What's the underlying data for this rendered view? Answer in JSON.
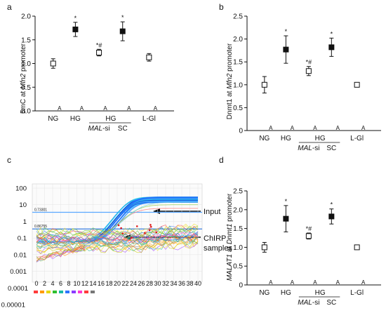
{
  "chart_data": [
    {
      "panel": "a",
      "type": "scatter",
      "ylabel_pre": "5mC at ",
      "ylabel_gene": "Mfn2",
      "ylabel_post": " promoter",
      "ylim": [
        0,
        2.0
      ],
      "yticks": [
        "0.0",
        "0.5",
        "1.0",
        "1.5",
        "2.0"
      ],
      "groups": [
        {
          "label": "NG",
          "value": 1.0,
          "err": 0.1,
          "filled": false,
          "star": ""
        },
        {
          "label": "HG",
          "value": 1.72,
          "err": 0.15,
          "filled": true,
          "star": "*"
        },
        {
          "label": "",
          "value": 1.23,
          "err": 0.07,
          "filled": false,
          "star": "*#"
        },
        {
          "label": "",
          "value": 1.68,
          "err": 0.2,
          "filled": true,
          "star": "*"
        },
        {
          "label": "L-Gl",
          "value": 1.13,
          "err": 0.08,
          "filled": false,
          "star": ""
        }
      ],
      "sub": {
        "hg": "HG",
        "mal": "MAL",
        "si": "-si",
        "sc": "SC"
      }
    },
    {
      "panel": "b",
      "type": "scatter",
      "ylabel_pre": "Dnmt1 at ",
      "ylabel_gene": "Mfn2",
      "ylabel_post": " promoter",
      "ylim": [
        0,
        2.5
      ],
      "yticks": [
        "0",
        "0.5",
        "1.0",
        "1.5",
        "2.0",
        "2.5"
      ],
      "groups": [
        {
          "label": "NG",
          "value": 1.0,
          "err": 0.18,
          "filled": false,
          "star": ""
        },
        {
          "label": "HG",
          "value": 1.77,
          "err": 0.3,
          "filled": true,
          "star": "*"
        },
        {
          "label": "",
          "value": 1.3,
          "err": 0.1,
          "filled": false,
          "star": "*#"
        },
        {
          "label": "",
          "value": 1.82,
          "err": 0.2,
          "filled": true,
          "star": "*"
        },
        {
          "label": "L-Gl",
          "value": 1.0,
          "err": 0.05,
          "filled": false,
          "star": ""
        }
      ],
      "sub": {
        "hg": "HG",
        "mal": "MAL",
        "si": "-si",
        "sc": "SC"
      }
    },
    {
      "panel": "c",
      "type": "line",
      "ytick_labels": [
        "100",
        "10",
        "1",
        "0.1",
        "0.01",
        "0.001",
        "0.0001",
        "0.00001"
      ],
      "ytick_values": [
        100,
        10,
        1,
        0.1,
        0.01,
        0.001,
        0.0001,
        1e-05
      ],
      "xticks": [
        0,
        2,
        4,
        6,
        8,
        10,
        12,
        14,
        16,
        18,
        20,
        22,
        24,
        26,
        28,
        30,
        32,
        34,
        36,
        38,
        40
      ],
      "xlim": [
        0,
        40
      ],
      "thresholds": [
        {
          "label": "0.73301",
          "value": 3.5
        },
        {
          "label": "0.86755",
          "value": 0.35
        }
      ],
      "annotations": [
        "Input",
        "ChIRP",
        "samples"
      ],
      "input_curves": [
        {
          "x": [
            0,
            19,
            21,
            23,
            25,
            27,
            29,
            32,
            36,
            40
          ],
          "y": [
            0.05,
            0.08,
            0.35,
            1.8,
            7,
            15,
            20,
            24,
            26,
            27
          ]
        }
      ]
    },
    {
      "panel": "d",
      "type": "scatter",
      "ylabel_gene": "MALAT1",
      "ylabel_mid": " at ",
      "ylabel_gene2": "Dnmt1",
      "ylabel_post": " promoter",
      "ylim": [
        0,
        2.5
      ],
      "yticks": [
        "0",
        "0.5",
        "1.0",
        "1.5",
        "2.0",
        "2.5"
      ],
      "groups": [
        {
          "label": "NG",
          "value": 1.0,
          "err": 0.13,
          "filled": false,
          "star": ""
        },
        {
          "label": "HG",
          "value": 1.76,
          "err": 0.35,
          "filled": true,
          "star": "*"
        },
        {
          "label": "",
          "value": 1.3,
          "err": 0.08,
          "filled": false,
          "star": "*#"
        },
        {
          "label": "",
          "value": 1.82,
          "err": 0.2,
          "filled": true,
          "star": "*"
        },
        {
          "label": "L-Gl",
          "value": 1.0,
          "err": 0.04,
          "filled": false,
          "star": ""
        }
      ],
      "sub": {
        "hg": "HG",
        "mal": "MAL",
        "si": "-si",
        "sc": "SC"
      }
    }
  ],
  "zero_marker": "A"
}
